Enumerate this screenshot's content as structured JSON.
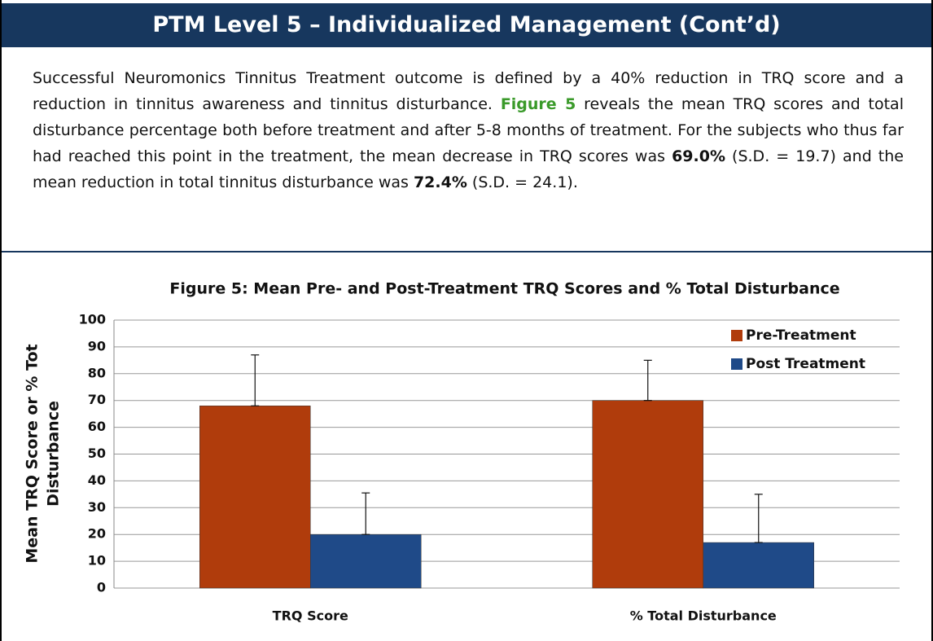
{
  "header": {
    "title": "PTM Level 5 – Individualized Management (Cont’d)"
  },
  "paragraph": [
    "Successful Neuromonics Tinnitus Treatment outcome is defined by a 40% reduction in TRQ score and a reduction in tinnitus awareness and tinnitus disturbance. ",
    "Figure 5",
    " reveals the mean TRQ scores and total disturbance percentage both before treatment and after 5-8 months of treatment. For the subjects who thus far had reached this point in the treatment, the mean decrease in TRQ scores was ",
    "69.0%",
    " (S.D. = 19.7) and the mean reduction in total tinnitus disturbance was ",
    "72.4%",
    "  (S.D. = 24.1)."
  ],
  "chart_data": {
    "type": "bar",
    "title": "Figure 5: Mean Pre- and Post-Treatment TRQ Scores and % Total Disturbance",
    "ylabel": [
      "Mean TRQ Score or % Tot",
      "Disturbance"
    ],
    "categories": [
      "TRQ Score",
      "% Total Disturbance"
    ],
    "series": [
      {
        "name": "Pre-Treatment",
        "color": "#b03c0c",
        "values": [
          68,
          70
        ],
        "errors": [
          19,
          15
        ]
      },
      {
        "name": "Post Treatment",
        "color": "#1f4a88",
        "values": [
          20,
          17
        ],
        "errors": [
          15.5,
          18
        ]
      }
    ],
    "ylim": [
      0,
      100
    ],
    "yticks": [
      0,
      10,
      20,
      30,
      40,
      50,
      60,
      70,
      80,
      90,
      100
    ],
    "grid": true,
    "legend": "upper right"
  }
}
